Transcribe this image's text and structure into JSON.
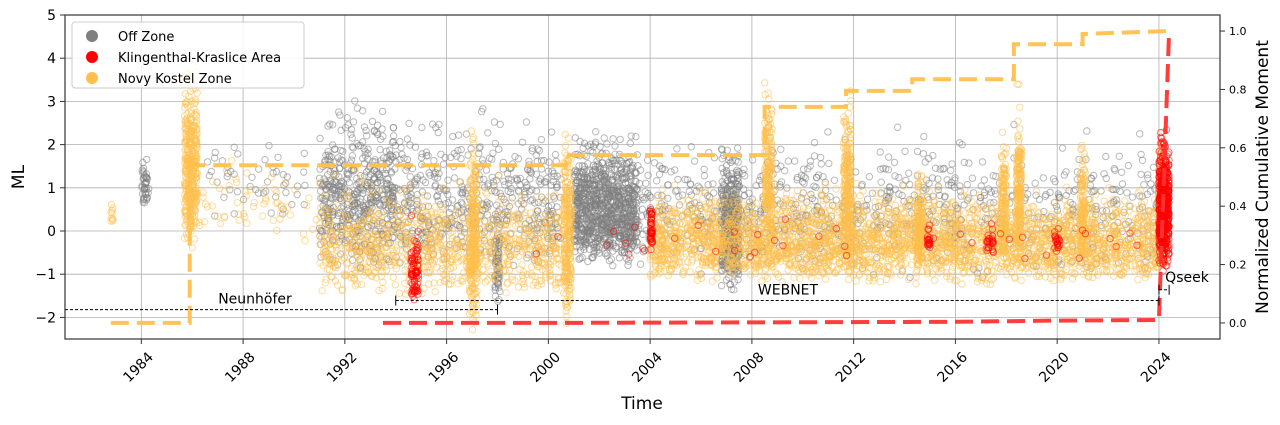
{
  "chart_data": {
    "type": "scatter",
    "xlabel": "Time",
    "ylabel": "ML",
    "y2label": "Normalized Cumulative Moment",
    "xlim": [
      1981.0,
      2026.4
    ],
    "ylim": [
      -2.5,
      5
    ],
    "y2lim": [
      -0.055,
      1.055
    ],
    "xticks": [
      "1984",
      "1988",
      "1992",
      "1996",
      "2000",
      "2004",
      "2008",
      "2012",
      "2016",
      "2020",
      "2024"
    ],
    "yticks": [
      "−2",
      "−1",
      "0",
      "1",
      "2",
      "3",
      "4",
      "5"
    ],
    "y2ticks": [
      "0.0",
      "0.2",
      "0.4",
      "0.6",
      "0.8",
      "1.0"
    ],
    "grid": true,
    "legend_placement": "top-left",
    "legend": [
      {
        "label": "Off Zone",
        "color": "#808080"
      },
      {
        "label": "Klingenthal-Kraslice Area",
        "color": "#ff0000"
      },
      {
        "label": "Novy Kostel Zone",
        "color": "#ffc04d"
      }
    ],
    "scatter_series": [
      {
        "name": "Off Zone",
        "color": "#808080",
        "swarms": [
          [
            1984.0,
            1984.3,
            0.4,
            1.9,
            40
          ],
          [
            1986.5,
            1990.5,
            0.2,
            2.4,
            50
          ],
          [
            1991.0,
            1994.0,
            -1.0,
            3.4,
            500
          ],
          [
            1994.0,
            2000.5,
            -1.2,
            3.2,
            500
          ],
          [
            2001.0,
            2003.5,
            -0.9,
            2.6,
            900
          ],
          [
            2003.5,
            2024.0,
            -1.2,
            2.8,
            900
          ],
          [
            2006.8,
            2007.5,
            -1.4,
            2.2,
            400
          ],
          [
            1997.9,
            1998.1,
            -1.9,
            1.0,
            60
          ]
        ]
      },
      {
        "name": "Novy Kostel Zone",
        "color": "#ffc04d",
        "swarms": [
          [
            1982.8,
            1982.9,
            0.0,
            0.8,
            10
          ],
          [
            1985.7,
            1986.2,
            -0.6,
            4.6,
            350
          ],
          [
            1986.2,
            1991.0,
            -0.5,
            2.2,
            60
          ],
          [
            1991.0,
            2000.5,
            -1.6,
            1.5,
            900
          ],
          [
            1996.9,
            1997.2,
            -2.4,
            3.0,
            250
          ],
          [
            2000.6,
            2000.9,
            -2.2,
            3.1,
            250
          ],
          [
            2004.0,
            2024.0,
            -1.3,
            1.3,
            3000
          ],
          [
            2008.5,
            2008.8,
            -0.6,
            3.8,
            200
          ],
          [
            2011.6,
            2011.9,
            -1.0,
            3.6,
            250
          ],
          [
            2014.5,
            2014.7,
            -1.0,
            1.6,
            150
          ],
          [
            2017.8,
            2018.0,
            -1.0,
            3.0,
            150
          ],
          [
            2018.4,
            2018.6,
            -1.0,
            3.5,
            200
          ],
          [
            2020.9,
            2021.1,
            -1.0,
            2.6,
            150
          ],
          [
            2024.0,
            2024.2,
            -1.0,
            2.7,
            200
          ]
        ]
      },
      {
        "name": "Klingenthal-Kraslice Area",
        "color": "#ff0000",
        "swarms": [
          [
            1994.6,
            1994.9,
            -1.7,
            0.5,
            80
          ],
          [
            2004.0,
            2004.1,
            -0.5,
            0.9,
            40
          ],
          [
            2014.9,
            2015.0,
            -0.6,
            0.4,
            20
          ],
          [
            2017.2,
            2017.5,
            -0.6,
            0.3,
            25
          ],
          [
            2019.9,
            2020.1,
            -0.5,
            0.2,
            20
          ],
          [
            1998.0,
            2024.0,
            -0.9,
            0.6,
            40
          ],
          [
            2024.0,
            2024.4,
            -1.0,
            2.6,
            500
          ]
        ]
      }
    ],
    "cumulative_series": [
      {
        "name": "Novy Kostel Zone",
        "color": "#ffc04d",
        "x": [
          1982.8,
          1985.9,
          1985.9,
          2000.7,
          2000.7,
          2008.5,
          2008.5,
          2011.7,
          2011.7,
          2014.3,
          2014.3,
          2018.3,
          2018.3,
          2021.0,
          2021.0,
          2024.3
        ],
        "y": [
          0.0,
          0.0,
          0.54,
          0.54,
          0.575,
          0.575,
          0.74,
          0.74,
          0.795,
          0.795,
          0.835,
          0.835,
          0.955,
          0.955,
          0.99,
          1.0
        ]
      },
      {
        "name": "Klingenthal-Kraslice Area",
        "color": "#ff3333",
        "x": [
          1993.5,
          2000.0,
          2008.0,
          2016.0,
          2020.0,
          2024.0,
          2024.2,
          2024.4
        ],
        "y": [
          0.0,
          0.0,
          0.002,
          0.004,
          0.008,
          0.01,
          0.5,
          1.0
        ]
      }
    ],
    "annotations": [
      {
        "label": "Neunhöfer",
        "x": [
          1981.0,
          1998.0
        ],
        "ml": -1.82
      },
      {
        "label": "WEBNET",
        "x": [
          1994.0,
          2024.0
        ],
        "ml": -1.61
      },
      {
        "label": "Qseek",
        "x": [
          2024.0,
          2024.4
        ],
        "ml": -1.36
      }
    ]
  }
}
